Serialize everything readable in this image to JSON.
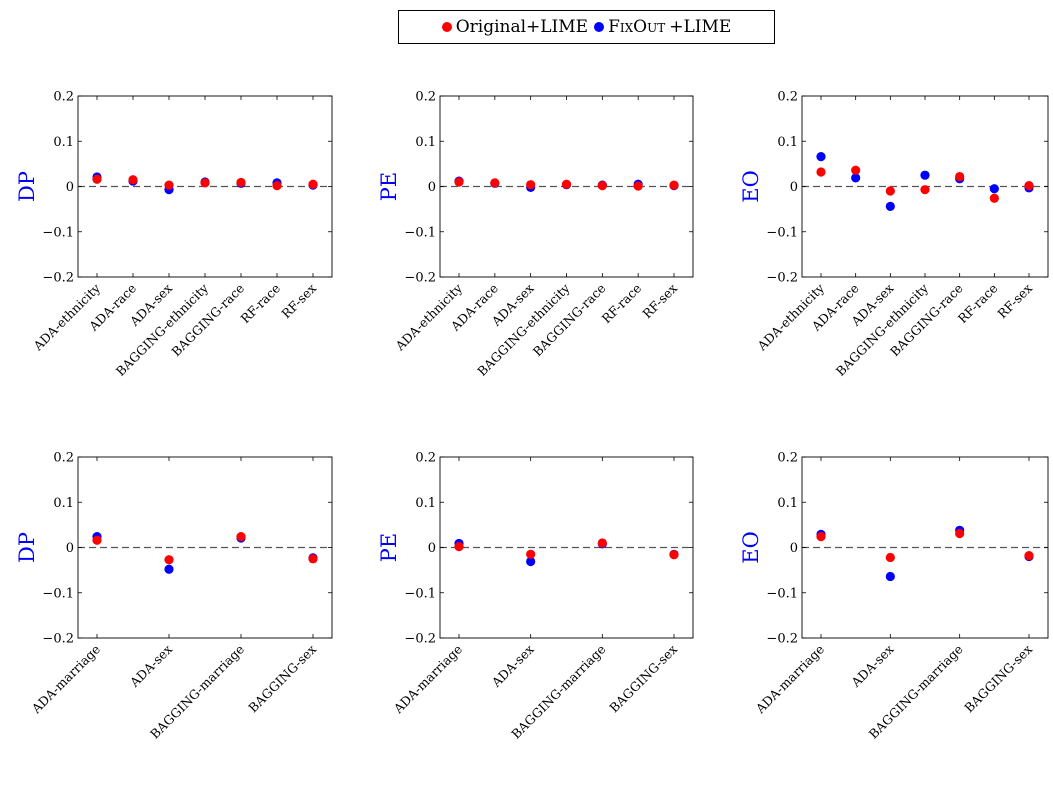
{
  "legend": {
    "series": [
      {
        "label": "Original+LIME",
        "color": "#ff0000"
      },
      {
        "label_main": "FixOut",
        "label_suffix": "+LIME",
        "color": "#0000ff"
      }
    ]
  },
  "chart_data": [
    {
      "type": "scatter",
      "ylabel": "DP",
      "ylim": [
        -0.2,
        0.2
      ],
      "yticks": [
        "0.2",
        "0.1",
        "0",
        "−0.1",
        "−0.2"
      ],
      "categories": [
        "ADA-ethnicity",
        "ADA-race",
        "ADA-sex",
        "BAGGING-ethnicity",
        "BAGGING-race",
        "RF-race",
        "RF-sex"
      ],
      "series": [
        {
          "name": "Original+LIME",
          "color": "#ff0000",
          "values": [
            0.016,
            0.015,
            0.003,
            0.008,
            0.009,
            0.002,
            0.005
          ]
        },
        {
          "name": "FixOut +LIME",
          "color": "#0000ff",
          "values": [
            0.021,
            0.012,
            -0.007,
            0.01,
            0.007,
            0.008,
            0.003
          ]
        }
      ]
    },
    {
      "type": "scatter",
      "ylabel": "PE",
      "ylim": [
        -0.2,
        0.2
      ],
      "yticks": [
        "0.2",
        "0.1",
        "0",
        "−0.1",
        "−0.2"
      ],
      "categories": [
        "ADA-ethnicity",
        "ADA-race",
        "ADA-sex",
        "BAGGING-ethnicity",
        "BAGGING-race",
        "RF-race",
        "RF-sex"
      ],
      "series": [
        {
          "name": "Original+LIME",
          "color": "#ff0000",
          "values": [
            0.01,
            0.008,
            0.004,
            0.005,
            0.002,
            0.001,
            0.003
          ]
        },
        {
          "name": "FixOut +LIME",
          "color": "#0000ff",
          "values": [
            0.012,
            0.007,
            -0.002,
            0.004,
            0.003,
            0.005,
            0.002
          ]
        }
      ]
    },
    {
      "type": "scatter",
      "ylabel": "EO",
      "ylim": [
        -0.2,
        0.2
      ],
      "yticks": [
        "0.2",
        "0.1",
        "0",
        "−0.1",
        "−0.2"
      ],
      "categories": [
        "ADA-ethnicity",
        "ADA-race",
        "ADA-sex",
        "BAGGING-ethnicity",
        "BAGGING-race",
        "RF-race",
        "RF-sex"
      ],
      "series": [
        {
          "name": "Original+LIME",
          "color": "#ff0000",
          "values": [
            0.032,
            0.036,
            -0.01,
            -0.007,
            0.022,
            -0.026,
            0.002
          ]
        },
        {
          "name": "FixOut +LIME",
          "color": "#0000ff",
          "values": [
            0.066,
            0.019,
            -0.044,
            0.025,
            0.017,
            -0.005,
            -0.003
          ]
        }
      ]
    },
    {
      "type": "scatter",
      "ylabel": "DP",
      "ylim": [
        -0.2,
        0.2
      ],
      "yticks": [
        "0.2",
        "0.1",
        "0",
        "−0.1",
        "−0.2"
      ],
      "categories": [
        "ADA-marriage",
        "ADA-sex",
        "BAGGING-marriage",
        "BAGGING-sex"
      ],
      "series": [
        {
          "name": "Original+LIME",
          "color": "#ff0000",
          "values": [
            0.016,
            -0.027,
            0.024,
            -0.025
          ]
        },
        {
          "name": "FixOut +LIME",
          "color": "#0000ff",
          "values": [
            0.024,
            -0.048,
            0.021,
            -0.023
          ]
        }
      ]
    },
    {
      "type": "scatter",
      "ylabel": "PE",
      "ylim": [
        -0.2,
        0.2
      ],
      "yticks": [
        "0.2",
        "0.1",
        "0",
        "−0.1",
        "−0.2"
      ],
      "categories": [
        "ADA-marriage",
        "ADA-sex",
        "BAGGING-marriage",
        "BAGGING-sex"
      ],
      "series": [
        {
          "name": "Original+LIME",
          "color": "#ff0000",
          "values": [
            0.002,
            -0.015,
            0.01,
            -0.016
          ]
        },
        {
          "name": "FixOut +LIME",
          "color": "#0000ff",
          "values": [
            0.009,
            -0.031,
            0.008,
            -0.015
          ]
        }
      ]
    },
    {
      "type": "scatter",
      "ylabel": "EO",
      "ylim": [
        -0.2,
        0.2
      ],
      "yticks": [
        "0.2",
        "0.1",
        "0",
        "−0.1",
        "−0.2"
      ],
      "categories": [
        "ADA-marriage",
        "ADA-sex",
        "BAGGING-marriage",
        "BAGGING-sex"
      ],
      "series": [
        {
          "name": "Original+LIME",
          "color": "#ff0000",
          "values": [
            0.024,
            -0.022,
            0.031,
            -0.018
          ]
        },
        {
          "name": "FixOut +LIME",
          "color": "#0000ff",
          "values": [
            0.029,
            -0.064,
            0.038,
            -0.02
          ]
        }
      ]
    }
  ]
}
